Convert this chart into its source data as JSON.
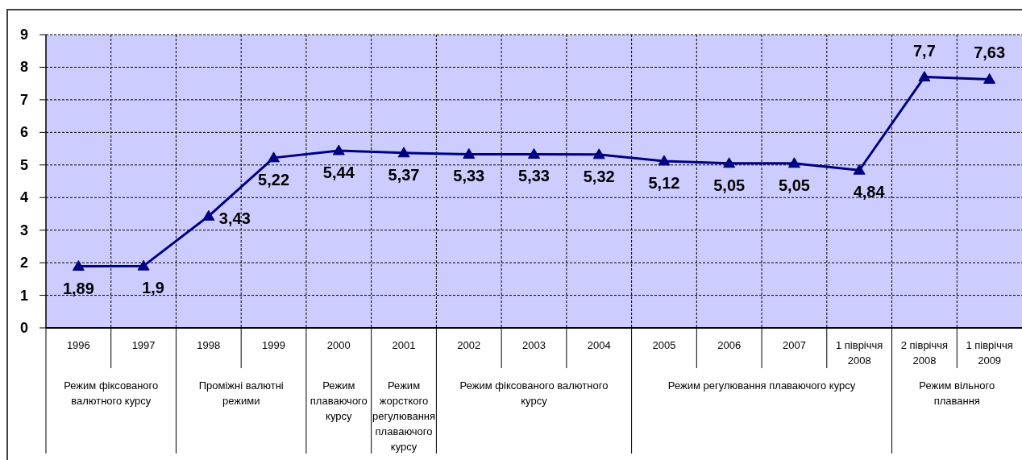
{
  "chart_data": {
    "type": "line",
    "categories": [
      "1996",
      "1997",
      "1998",
      "1999",
      "2000",
      "2001",
      "2002",
      "2003",
      "2004",
      "2005",
      "2006",
      "2007",
      "1 півріччя 2008",
      "2 півріччя 2008",
      "1 півріччя 2009"
    ],
    "series": [
      {
        "color": "#000080",
        "values": [
          1.89,
          1.9,
          3.43,
          5.22,
          5.44,
          5.37,
          5.33,
          5.33,
          5.32,
          5.12,
          5.05,
          5.05,
          4.84,
          7.7,
          7.63
        ],
        "value_labels": [
          "1,89",
          "1,9",
          "3,43",
          "5,22",
          "5,44",
          "5,37",
          "5,33",
          "5,33",
          "5,32",
          "5,12",
          "5,05",
          "5,05",
          "4,84",
          "7,7",
          "7,63"
        ]
      }
    ],
    "ylim": [
      0,
      9
    ],
    "yticks": [
      0,
      1,
      2,
      3,
      4,
      5,
      6,
      7,
      8,
      9
    ],
    "grid": true,
    "marker": "triangle",
    "line_style": "solid",
    "annotations": [
      "Режим фіксованого валютного курсу",
      "Проміжні валютні режими",
      "Режим плаваючого курсу",
      "Режим жорсткого регулювання плаваючого курсу",
      "Режим фіксованого валютного курсу",
      "Режим регулювання плаваючого курсу",
      "Режим вільного плавання"
    ]
  }
}
